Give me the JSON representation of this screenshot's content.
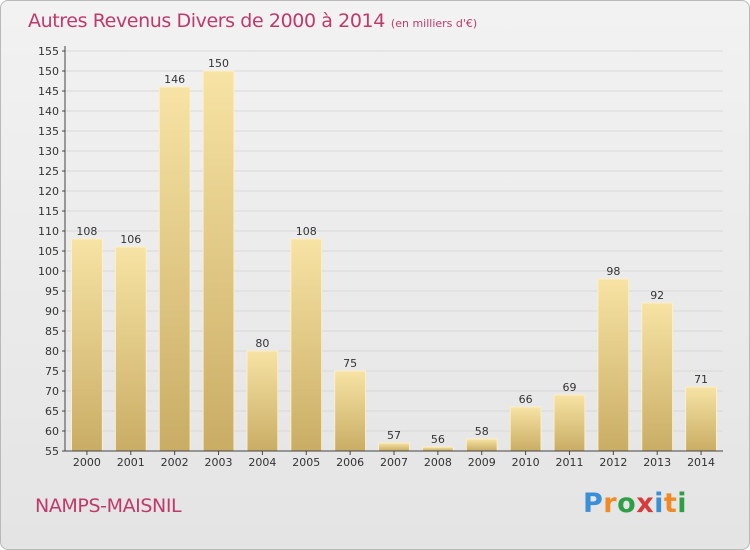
{
  "chart_title": "Autres Revenus Divers de 2000 à 2014",
  "chart_unit": "(en milliers d'€)",
  "commune": "NAMPS-MAISNIL",
  "brand": {
    "letters": [
      "P",
      "r",
      "o",
      "x",
      "i",
      "t",
      "i"
    ],
    "colors": [
      "#3b8fd8",
      "#f08a24",
      "#2f9e45",
      "#d73b3b",
      "#3b8fd8",
      "#f08a24",
      "#2f9e45"
    ]
  },
  "colors": {
    "title": "#c0396b",
    "bar_light": "#f7e3a4",
    "bar_dark": "#c9ad65",
    "grid": "#d9d9d9",
    "axis": "#444444"
  },
  "chart_data": {
    "type": "bar",
    "categories": [
      "2000",
      "2001",
      "2002",
      "2003",
      "2004",
      "2005",
      "2006",
      "2007",
      "2008",
      "2009",
      "2010",
      "2011",
      "2012",
      "2013",
      "2014"
    ],
    "values": [
      108,
      106,
      146,
      150,
      80,
      108,
      75,
      57,
      56,
      58,
      66,
      69,
      98,
      92,
      71
    ],
    "ylim": [
      55,
      155
    ],
    "ytick_step": 5,
    "grid": true,
    "data_labels": true
  }
}
